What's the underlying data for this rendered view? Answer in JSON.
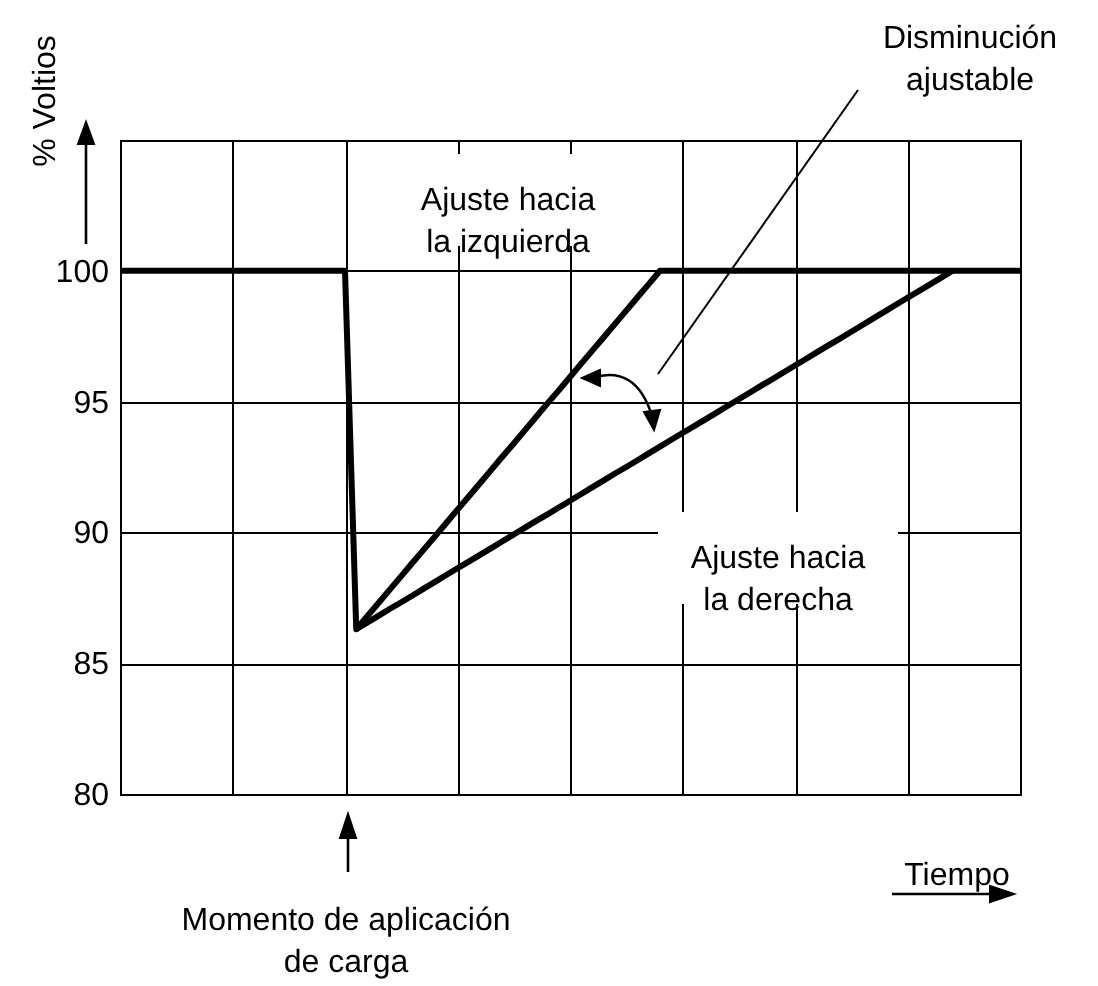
{
  "chart_data": {
    "type": "line",
    "ylabel": "% Voltios",
    "xlabel": "Tiempo",
    "categories": [
      null,
      null,
      null,
      null,
      null,
      null,
      null,
      null,
      null,
      null,
      null,
      null,
      null,
      null,
      null,
      null,
      null,
      null,
      null,
      null,
      null,
      null,
      null,
      null,
      null,
      null,
      null,
      null,
      null,
      null,
      null,
      null,
      null,
      null,
      null,
      null,
      null,
      null,
      null,
      null,
      null,
      null,
      null,
      null,
      null,
      null,
      null,
      null,
      null,
      null,
      null,
      null,
      null,
      null,
      null,
      null,
      null,
      null,
      null,
      null,
      null,
      null,
      null,
      null,
      null,
      null,
      null,
      null,
      null,
      null,
      null,
      null,
      null,
      null,
      null,
      null,
      null,
      null,
      null,
      null,
      null
    ],
    "ylim": [
      80,
      105
    ],
    "yticks": [
      80,
      85,
      90,
      95,
      100
    ],
    "grid": true,
    "tick_labels": "y",
    "marker": "none",
    "line_style": "solid",
    "series": [
      {
        "color": "#000000",
        "values": [
          100,
          100,
          100,
          100,
          100,
          100,
          100,
          100,
          100,
          100,
          100,
          100,
          100,
          100,
          100,
          100,
          100,
          100,
          100,
          100,
          100,
          86.3,
          86.81,
          87.31,
          87.82,
          88.33,
          88.84,
          89.34,
          89.85,
          90.36,
          90.87,
          91.37,
          91.88,
          92.39,
          92.9,
          93.4,
          93.91,
          94.42,
          94.93,
          95.43,
          95.94,
          96.45,
          96.96,
          97.46,
          97.97,
          98.48,
          98.99,
          99.49,
          100,
          100,
          100,
          100,
          100,
          100,
          100,
          100,
          100,
          100,
          100,
          100,
          100,
          100,
          100,
          100,
          100,
          100,
          100,
          100,
          100,
          100,
          100,
          100,
          100,
          100,
          100,
          100,
          100,
          100,
          100,
          100,
          100
        ]
      },
      {
        "color": "#000000",
        "values": [
          null,
          null,
          null,
          null,
          null,
          null,
          null,
          null,
          null,
          null,
          null,
          null,
          null,
          null,
          null,
          null,
          null,
          null,
          null,
          null,
          null,
          86.3,
          86.56,
          86.82,
          87.08,
          87.33,
          87.59,
          87.85,
          88.11,
          88.37,
          88.63,
          88.88,
          89.14,
          89.4,
          89.66,
          89.92,
          90.18,
          90.44,
          90.69,
          90.95,
          91.21,
          91.47,
          91.73,
          91.99,
          92.25,
          92.5,
          92.76,
          93.02,
          93.28,
          93.54,
          93.8,
          94.05,
          94.31,
          94.57,
          94.83,
          95.09,
          95.35,
          95.61,
          95.86,
          96.12,
          96.38,
          96.64,
          96.9,
          97.16,
          97.41,
          97.67,
          97.93,
          98.19,
          98.45,
          98.71,
          98.97,
          99.22,
          99.48,
          99.74,
          100,
          null,
          null,
          null,
          null,
          null,
          null
        ]
      }
    ],
    "annotations": [
      "Ajuste hacia\nla izquierda",
      "Ajuste hacia\nla derecha",
      "Disminución\najustable",
      "Momento de aplicación\nde carga"
    ]
  }
}
